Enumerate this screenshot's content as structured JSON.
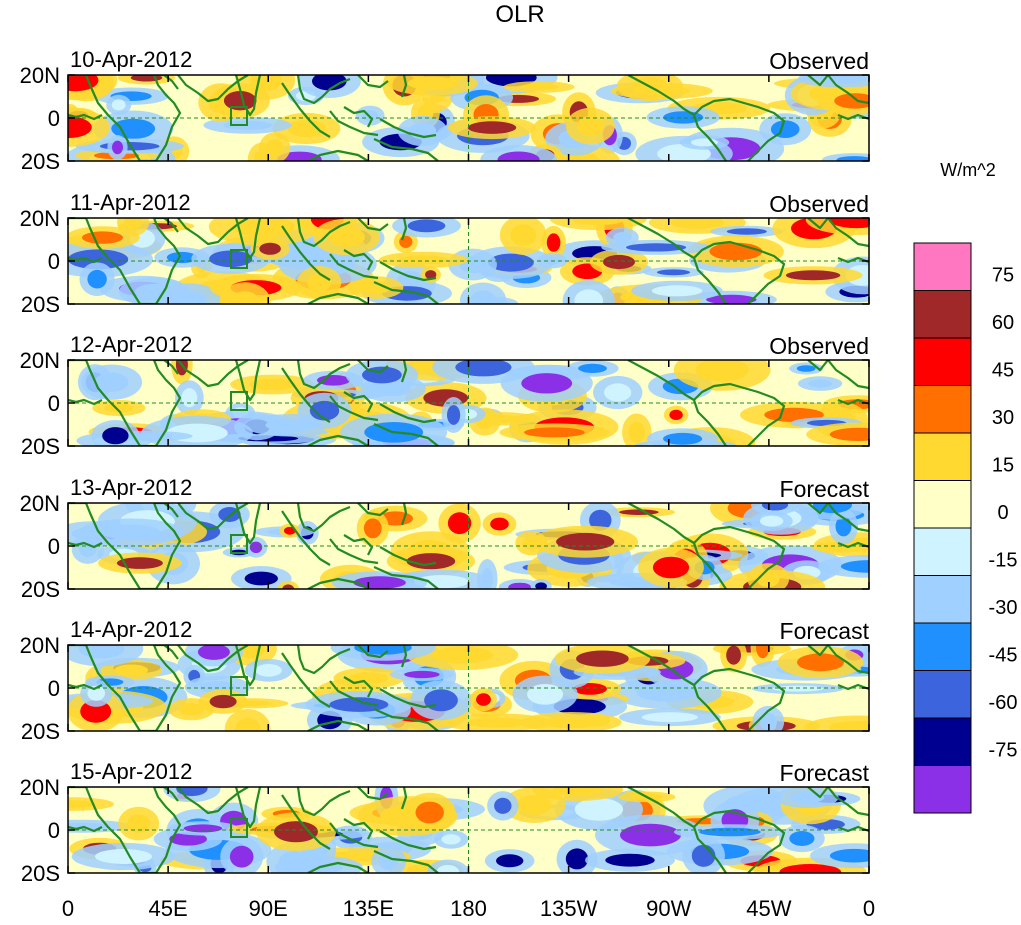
{
  "title": "OLR",
  "panels": [
    {
      "date": "10-Apr-2012",
      "label": "Observed"
    },
    {
      "date": "11-Apr-2012",
      "label": "Observed"
    },
    {
      "date": "12-Apr-2012",
      "label": "Observed"
    },
    {
      "date": "13-Apr-2012",
      "label": "Forecast"
    },
    {
      "date": "14-Apr-2012",
      "label": "Forecast"
    },
    {
      "date": "15-Apr-2012",
      "label": "Forecast"
    }
  ],
  "lat_labels": [
    "20N",
    "0",
    "20S"
  ],
  "lon_labels": [
    "0",
    "45E",
    "90E",
    "135E",
    "180",
    "135W",
    "90W",
    "45W",
    "0"
  ],
  "colorbar": {
    "unit": "W/m^2",
    "ticks": [
      "75",
      "60",
      "45",
      "30",
      "15",
      "0",
      "-15",
      "-30",
      "-45",
      "-60",
      "-75"
    ],
    "colors": [
      "#ff77c0",
      "#a02828",
      "#ff0000",
      "#ff7000",
      "#ffd830",
      "#ffffc8",
      "#d0f4ff",
      "#a0d0ff",
      "#2090ff",
      "#3c64dc",
      "#000090",
      "#8c30e8"
    ]
  },
  "colors": {
    "coastline": "#228b22",
    "equator": "#228b22"
  }
}
